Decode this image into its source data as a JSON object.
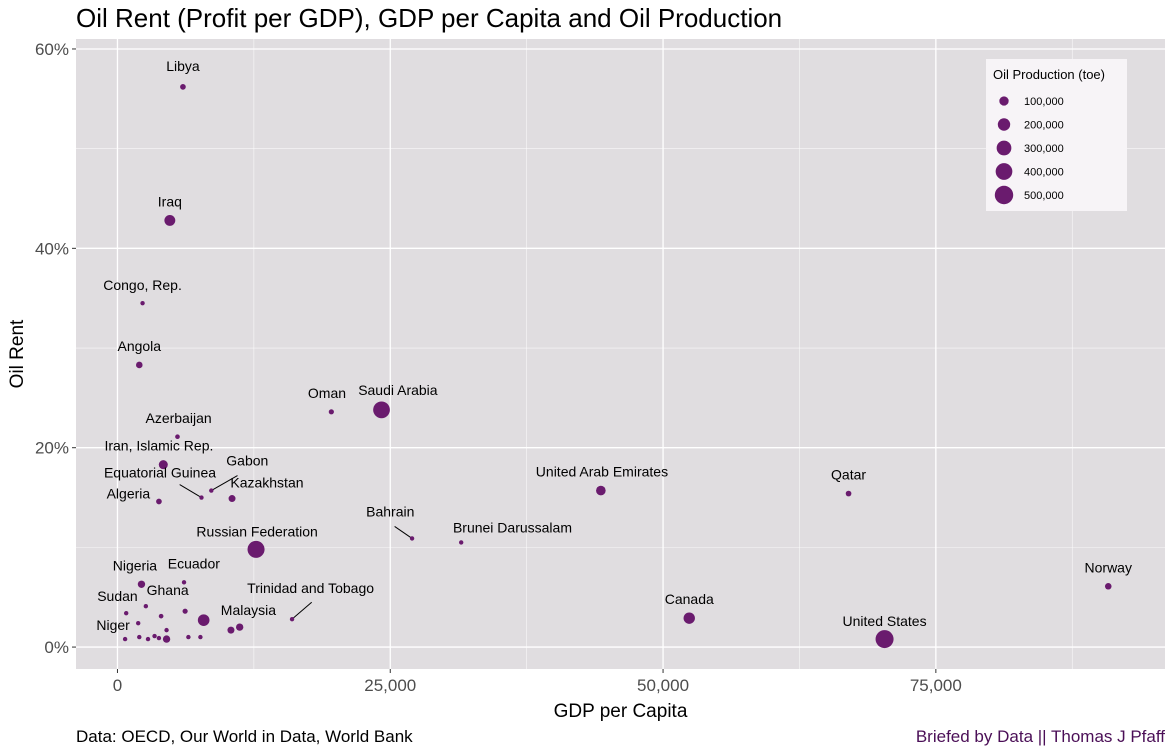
{
  "chart_data": {
    "type": "scatter",
    "title": "Oil Rent (Profit per GDP), GDP per Capita and Oil Production",
    "xlabel": "GDP per Capita",
    "ylabel": "Oil Rent",
    "xlim": [
      -3800,
      96000
    ],
    "ylim": [
      -0.022,
      0.61
    ],
    "x_ticks": [
      0,
      25000,
      50000,
      75000
    ],
    "x_tick_labels": [
      "0",
      "25,000",
      "50,000",
      "75,000"
    ],
    "y_ticks": [
      0,
      0.2,
      0.4,
      0.6
    ],
    "y_tick_labels": [
      "0%",
      "20%",
      "40%",
      "60%"
    ],
    "grid": true,
    "point_color": "#6a1b6e",
    "panel_background": "#e0dde0",
    "size_legend": {
      "title": "Oil Production (toe)",
      "placement": "top-right",
      "values": [
        100000,
        200000,
        300000,
        400000,
        500000
      ],
      "labels": [
        "100,000",
        "200,000",
        "300,000",
        "400,000",
        "500,000"
      ]
    },
    "points": [
      {
        "label": "Libya",
        "x": 6000,
        "y": 0.562,
        "size": 60000
      },
      {
        "label": "Iraq",
        "x": 4800,
        "y": 0.428,
        "size": 220000
      },
      {
        "label": "Congo, Rep.",
        "x": 2300,
        "y": 0.345,
        "size": 15000
      },
      {
        "label": "Angola",
        "x": 2000,
        "y": 0.283,
        "size": 80000
      },
      {
        "label": "Oman",
        "x": 19600,
        "y": 0.236,
        "size": 50000
      },
      {
        "label": "Saudi Arabia",
        "x": 24200,
        "y": 0.238,
        "size": 520000
      },
      {
        "label": "Azerbaijan",
        "x": 5500,
        "y": 0.211,
        "size": 40000
      },
      {
        "label": "Iran, Islamic Rep.",
        "x": 4200,
        "y": 0.183,
        "size": 150000
      },
      {
        "label": "Gabon",
        "x": 8600,
        "y": 0.157,
        "size": 12000
      },
      {
        "label": "Equatorial Guinea",
        "x": 7700,
        "y": 0.15,
        "size": 15000
      },
      {
        "label": "Kazakhstan",
        "x": 10500,
        "y": 0.149,
        "size": 90000
      },
      {
        "label": "Algeria",
        "x": 3800,
        "y": 0.146,
        "size": 60000
      },
      {
        "label": "United Arab Emirates",
        "x": 44300,
        "y": 0.157,
        "size": 170000
      },
      {
        "label": "Qatar",
        "x": 67000,
        "y": 0.154,
        "size": 60000
      },
      {
        "label": "Bahrain",
        "x": 27000,
        "y": 0.109,
        "size": 12000
      },
      {
        "label": "Brunei Darussalam",
        "x": 31500,
        "y": 0.105,
        "size": 12000
      },
      {
        "label": "Russian Federation",
        "x": 12700,
        "y": 0.098,
        "size": 540000
      },
      {
        "label": "Nigeria",
        "x": 2200,
        "y": 0.063,
        "size": 100000
      },
      {
        "label": "Ecuador",
        "x": 6100,
        "y": 0.065,
        "size": 30000
      },
      {
        "label": "Norway",
        "x": 90800,
        "y": 0.061,
        "size": 80000
      },
      {
        "label": "Sudan",
        "x": 800,
        "y": 0.034,
        "size": 12000
      },
      {
        "label": "Ghana",
        "x": 2600,
        "y": 0.041,
        "size": 15000
      },
      {
        "label": "Trinidad and Tobago",
        "x": 16000,
        "y": 0.028,
        "size": 15000
      },
      {
        "label": "Malaysia",
        "x": 10400,
        "y": 0.017,
        "size": 90000
      },
      {
        "label": "Canada",
        "x": 52400,
        "y": 0.029,
        "size": 240000
      },
      {
        "label": "United States",
        "x": 70300,
        "y": 0.008,
        "size": 600000
      },
      {
        "label": "Niger",
        "x": 700,
        "y": 0.008,
        "size": 8000
      },
      {
        "label": "",
        "x": 6200,
        "y": 0.036,
        "size": 50000
      },
      {
        "label": "",
        "x": 7900,
        "y": 0.027,
        "size": 250000
      },
      {
        "label": "",
        "x": 4000,
        "y": 0.031,
        "size": 40000
      },
      {
        "label": "",
        "x": 11200,
        "y": 0.02,
        "size": 100000
      },
      {
        "label": "",
        "x": 1900,
        "y": 0.024,
        "size": 15000
      },
      {
        "label": "",
        "x": 4500,
        "y": 0.017,
        "size": 15000
      },
      {
        "label": "",
        "x": 2000,
        "y": 0.01,
        "size": 30000
      },
      {
        "label": "",
        "x": 2800,
        "y": 0.008,
        "size": 12000
      },
      {
        "label": "",
        "x": 3400,
        "y": 0.011,
        "size": 20000
      },
      {
        "label": "",
        "x": 3800,
        "y": 0.009,
        "size": 15000
      },
      {
        "label": "",
        "x": 4500,
        "y": 0.008,
        "size": 100000
      },
      {
        "label": "",
        "x": 6500,
        "y": 0.01,
        "size": 12000
      },
      {
        "label": "",
        "x": 7600,
        "y": 0.01,
        "size": 10000
      }
    ],
    "leader_lines": [
      {
        "label": "Gabon",
        "from": [
          11000,
          0.172
        ],
        "to": [
          8600,
          0.157
        ]
      },
      {
        "label": "Equatorial Guinea",
        "from": [
          5700,
          0.163
        ],
        "to": [
          7700,
          0.15
        ]
      },
      {
        "label": "Bahrain",
        "from": [
          25400,
          0.121
        ],
        "to": [
          27000,
          0.109
        ]
      },
      {
        "label": "Trinidad and Tobago",
        "from": [
          17800,
          0.045
        ],
        "to": [
          16000,
          0.028
        ]
      }
    ],
    "label_positions": {
      "Libya": [
        6000,
        0.578
      ],
      "Iraq": [
        4800,
        0.442
      ],
      "Congo, Rep.": [
        2300,
        0.358
      ],
      "Angola": [
        2000,
        0.297
      ],
      "Oman": [
        19200,
        0.25
      ],
      "Saudi Arabia": [
        25700,
        0.253
      ],
      "Azerbaijan": [
        5600,
        0.225
      ],
      "Iran, Islamic Rep.": [
        3800,
        0.197
      ],
      "Gabon": [
        11900,
        0.182
      ],
      "Equatorial Guinea": [
        3900,
        0.17
      ],
      "Kazakhstan": [
        13700,
        0.16
      ],
      "Algeria": [
        1000,
        0.149
      ],
      "United Arab Emirates": [
        44400,
        0.171
      ],
      "Qatar": [
        67000,
        0.168
      ],
      "Bahrain": [
        25000,
        0.131
      ],
      "Brunei Darussalam": [
        36200,
        0.115
      ],
      "Russian Federation": [
        12800,
        0.111
      ],
      "Nigeria": [
        1600,
        0.077
      ],
      "Ecuador": [
        7000,
        0.079
      ],
      "Norway": [
        90800,
        0.075
      ],
      "Sudan": [
        0,
        0.046
      ],
      "Ghana": [
        4600,
        0.052
      ],
      "Trinidad and Tobago": [
        17700,
        0.054
      ],
      "Malaysia": [
        12000,
        0.032
      ],
      "Canada": [
        52400,
        0.043
      ],
      "United States": [
        70300,
        0.021
      ],
      "Niger": [
        -400,
        0.017
      ]
    }
  },
  "caption_left": "Data: OECD, Our World in Data, World Bank",
  "caption_right": "Briefed by Data || Thomas J Pfaff"
}
